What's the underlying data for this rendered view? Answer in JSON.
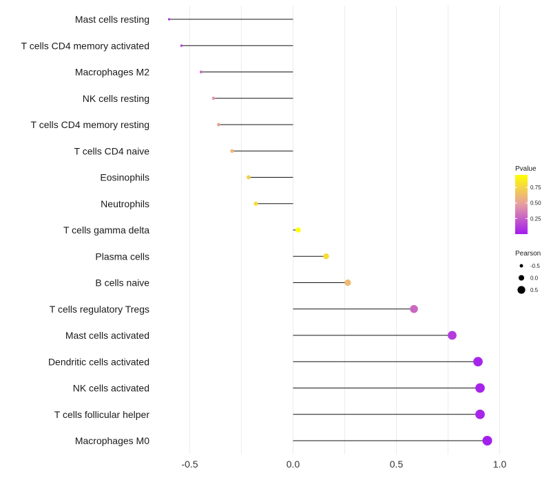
{
  "chart_data": {
    "type": "lollipop",
    "title": "",
    "xlabel": "",
    "ylabel": "",
    "xlim": [
      -0.65,
      1.0
    ],
    "x_ticks": [
      {
        "value": -0.5,
        "label": "-0.5"
      },
      {
        "value": 0.0,
        "label": "0.0"
      },
      {
        "value": 0.5,
        "label": "0.5"
      },
      {
        "value": 1.0,
        "label": "1.0"
      }
    ],
    "grid": true,
    "points": [
      {
        "category": "Mast cells resting",
        "pearson": -0.6,
        "pvalue": 0.05
      },
      {
        "category": "T cells CD4 memory activated",
        "pearson": -0.54,
        "pvalue": 0.15
      },
      {
        "category": "Macrophages M2",
        "pearson": -0.445,
        "pvalue": 0.3
      },
      {
        "category": "NK cells resting",
        "pearson": -0.385,
        "pvalue": 0.45
      },
      {
        "category": "T cells CD4 memory resting",
        "pearson": -0.36,
        "pvalue": 0.5
      },
      {
        "category": "T cells CD4 naive",
        "pearson": -0.295,
        "pvalue": 0.6
      },
      {
        "category": "Eosinophils",
        "pearson": -0.215,
        "pvalue": 0.72
      },
      {
        "category": "Neutrophils",
        "pearson": -0.18,
        "pvalue": 0.78
      },
      {
        "category": "T cells gamma delta",
        "pearson": 0.025,
        "pvalue": 0.95
      },
      {
        "category": "Plasma cells",
        "pearson": 0.16,
        "pvalue": 0.78
      },
      {
        "category": "B cells naive",
        "pearson": 0.265,
        "pvalue": 0.62
      },
      {
        "category": "T cells regulatory  Tregs",
        "pearson": 0.585,
        "pvalue": 0.28
      },
      {
        "category": "Mast cells activated",
        "pearson": 0.77,
        "pvalue": 0.12
      },
      {
        "category": "Dendritic cells activated",
        "pearson": 0.895,
        "pvalue": 0.03
      },
      {
        "category": "NK cells activated",
        "pearson": 0.905,
        "pvalue": 0.03
      },
      {
        "category": "T cells follicular helper",
        "pearson": 0.905,
        "pvalue": 0.03
      },
      {
        "category": "Macrophages M0",
        "pearson": 0.94,
        "pvalue": 0.01
      }
    ],
    "legend": {
      "color_title": "Pvalue",
      "color_ticks": [
        {
          "value": 0.75,
          "label": "0.75"
        },
        {
          "value": 0.5,
          "label": "0.50"
        },
        {
          "value": 0.25,
          "label": "0.25"
        }
      ],
      "color_range": [
        0.0,
        0.95
      ],
      "colors": {
        "low": "#a21cf0",
        "mid": "#e69ca3",
        "high": "#ffff00"
      },
      "size_title": "Pearson",
      "size_items": [
        {
          "value": -0.5,
          "label": "-0.5"
        },
        {
          "value": 0.0,
          "label": "0.0"
        },
        {
          "value": 0.5,
          "label": "0.5"
        }
      ],
      "placement": "right"
    }
  }
}
